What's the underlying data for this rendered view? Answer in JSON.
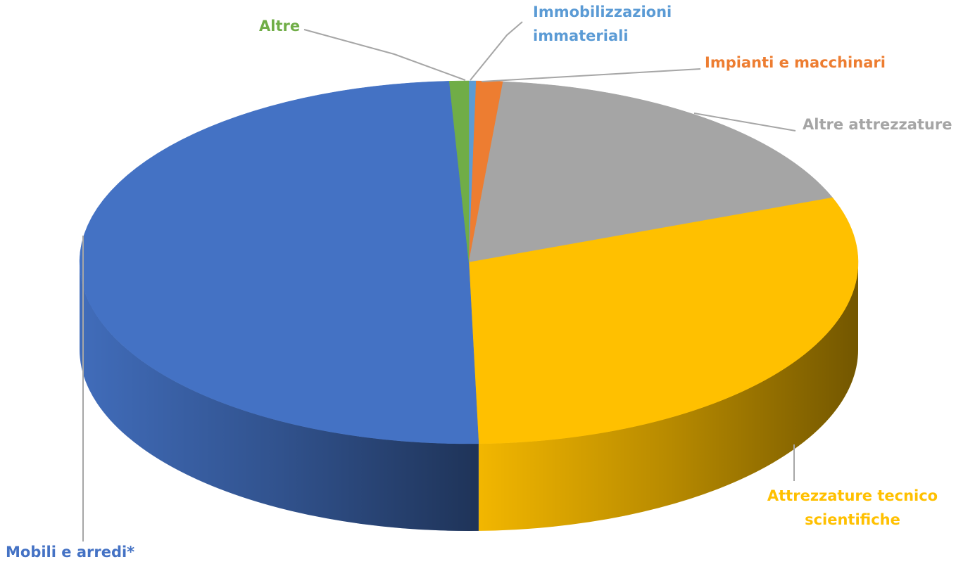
{
  "chart_data": {
    "type": "pie",
    "style": "3d",
    "title": "",
    "start_angle_deg": -90,
    "slices": [
      {
        "label": "Immobilizzazioni immateriali",
        "label_lines": [
          "Immobilizzazioni",
          "immateriali"
        ],
        "value": 0.3,
        "color": "#5b9bd5"
      },
      {
        "label": "Impianti e macchinari",
        "label_lines": [
          "Impianti e macchinari"
        ],
        "value": 1.1,
        "color": "#ed7d31"
      },
      {
        "label": "Altre attrezzature",
        "label_lines": [
          "Altre attrezzature"
        ],
        "value": 17.8,
        "color": "#a5a5a5"
      },
      {
        "label": "Attrezzature tecnico scientifiche",
        "label_lines": [
          "Attrezzature tecnico",
          "scientifiche"
        ],
        "value": 30.4,
        "color": "#ffc000"
      },
      {
        "label": "Mobili e arredi*",
        "label_lines": [
          "Mobili e arredi*"
        ],
        "value": 49.6,
        "color": "#4472c4"
      },
      {
        "label": "Altre",
        "label_lines": [
          "Altre"
        ],
        "value": 0.8,
        "color": "#70ad47"
      }
    ]
  }
}
